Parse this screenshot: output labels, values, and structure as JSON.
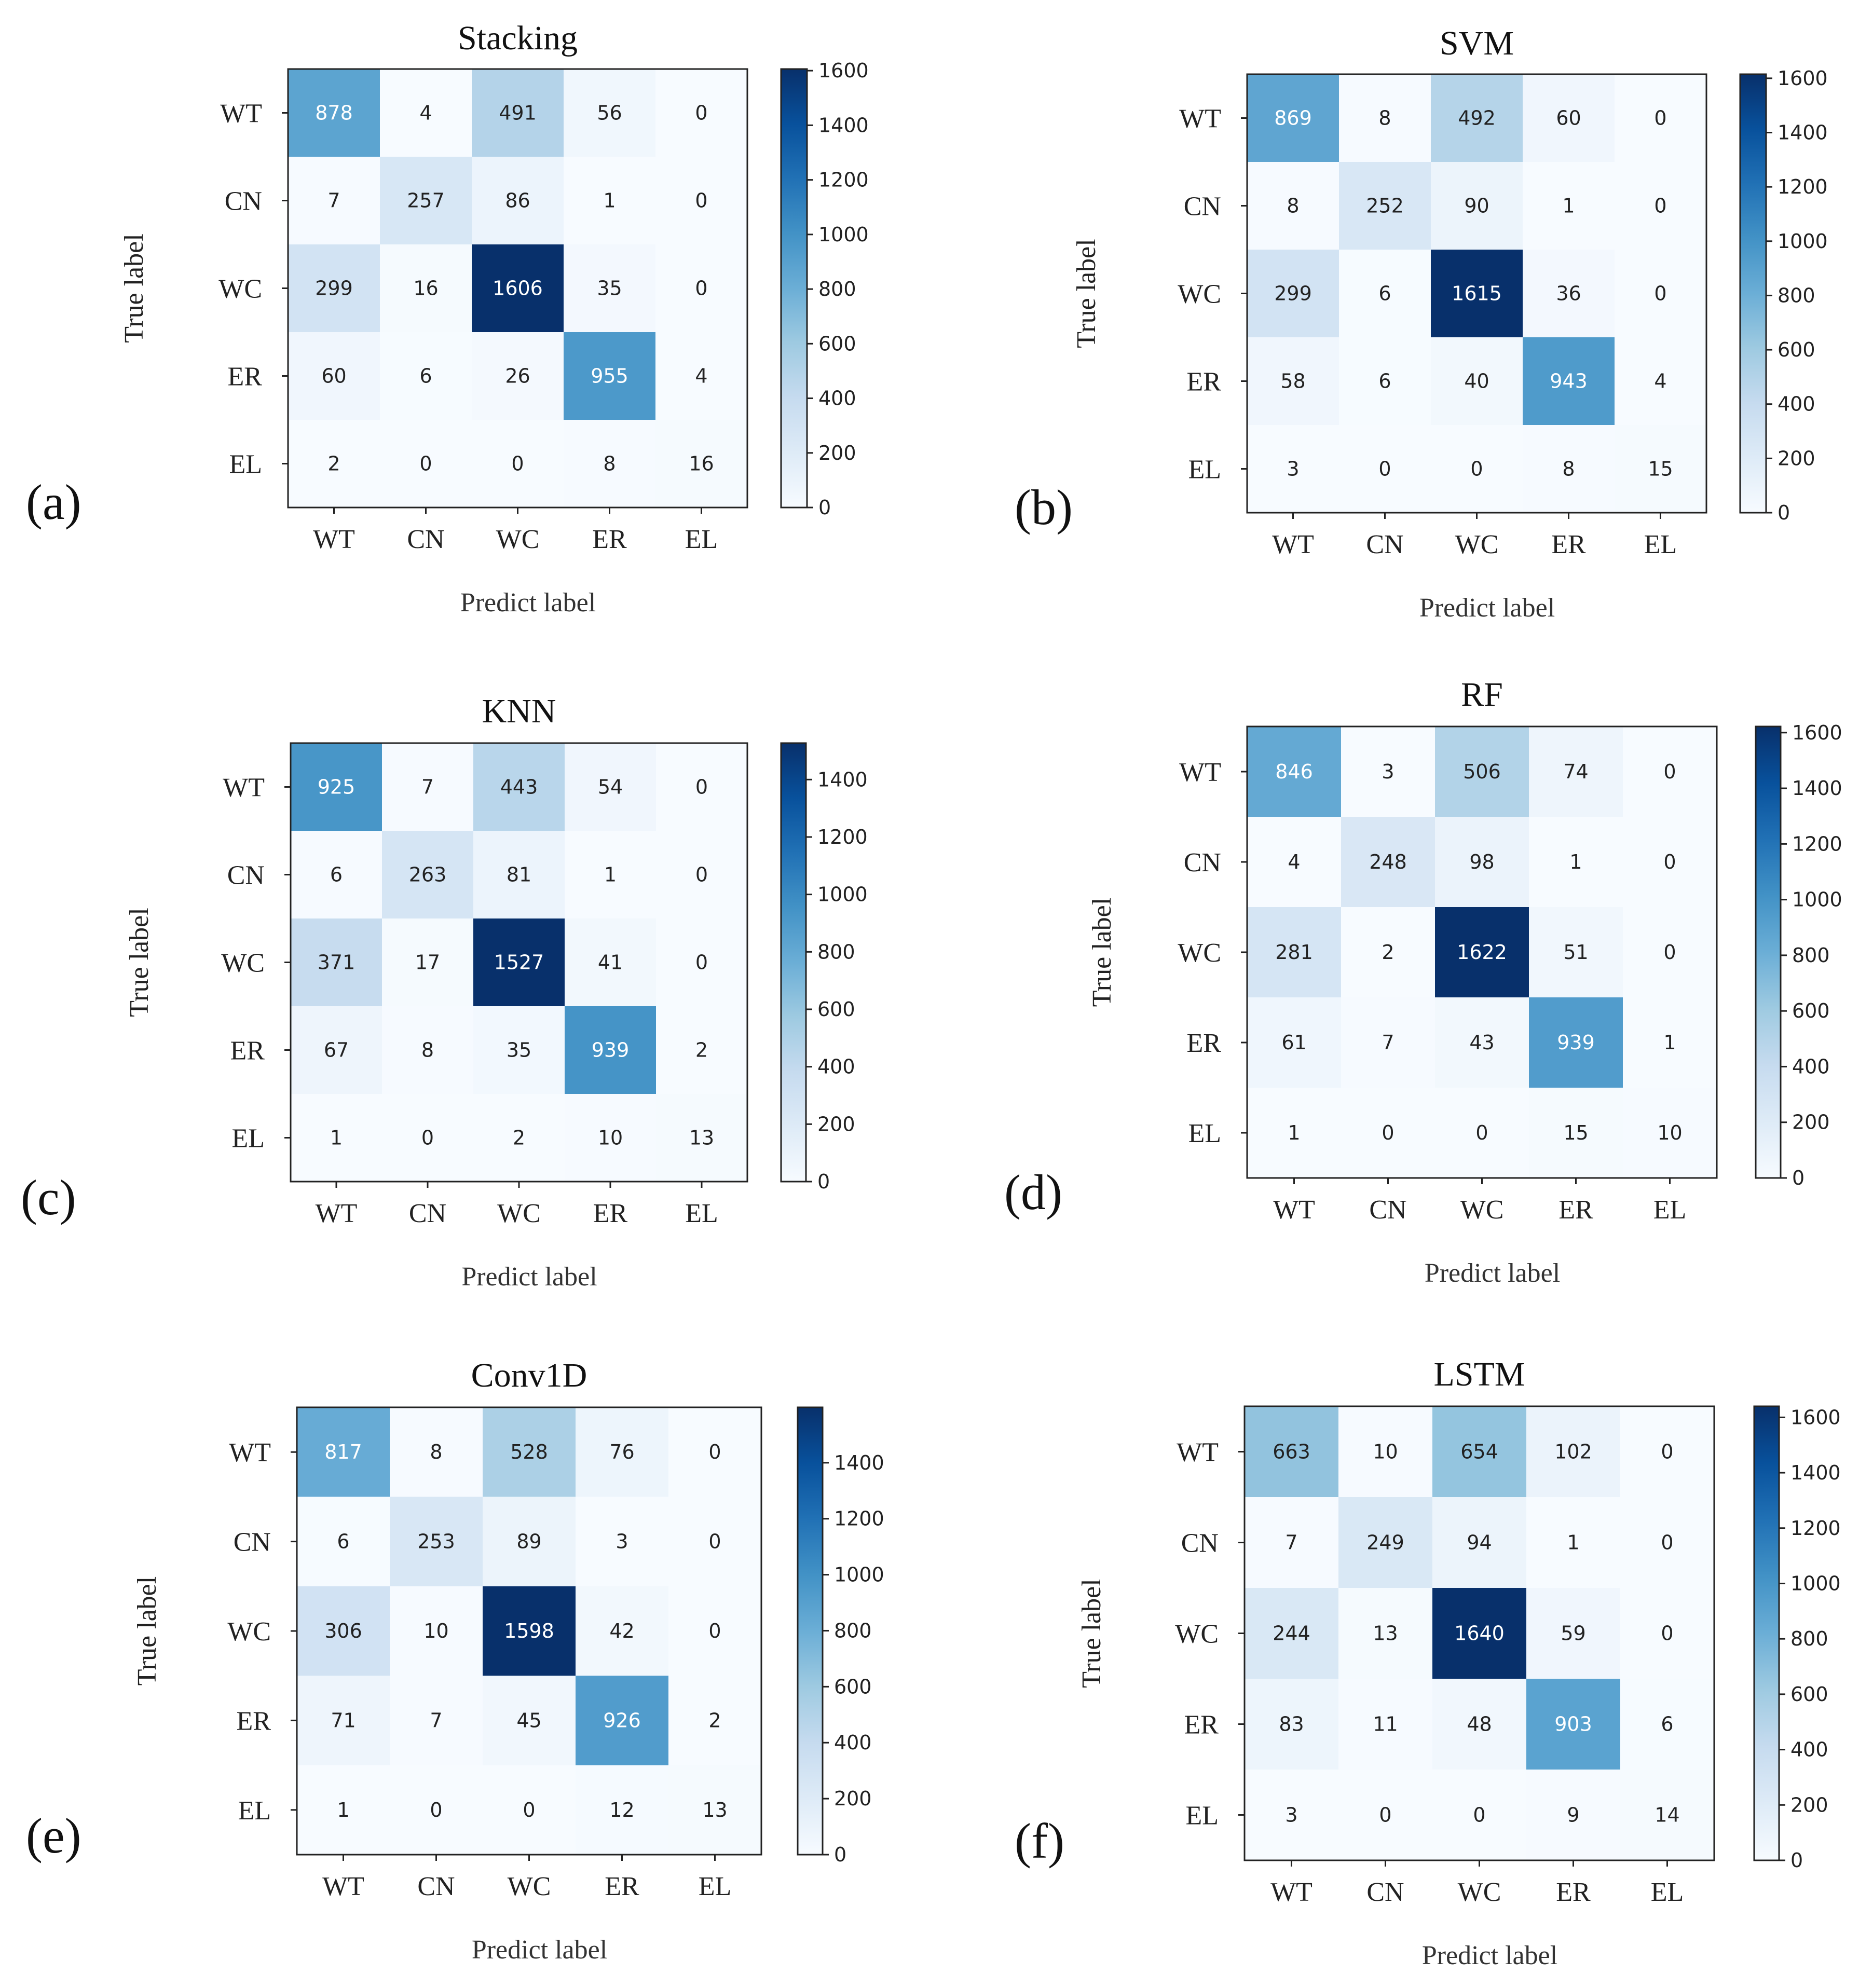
{
  "chart_data": [
    {
      "type": "heatmap",
      "panel_label": "(a)",
      "title": "Stacking",
      "xlabel": "Predict  label",
      "ylabel": "True label",
      "categories": [
        "WT",
        "CN",
        "WC",
        "ER",
        "EL"
      ],
      "matrix": [
        [
          878,
          4,
          491,
          56,
          0
        ],
        [
          7,
          257,
          86,
          1,
          0
        ],
        [
          299,
          16,
          1606,
          35,
          0
        ],
        [
          60,
          6,
          26,
          955,
          4
        ],
        [
          2,
          0,
          0,
          8,
          16
        ]
      ],
      "colorbar": {
        "max": 1606,
        "ticks": [
          0,
          200,
          400,
          600,
          800,
          1000,
          1200,
          1400,
          1600
        ]
      }
    },
    {
      "type": "heatmap",
      "panel_label": "(b)",
      "title": "SVM",
      "xlabel": "Predict  label",
      "ylabel": "True label",
      "categories": [
        "WT",
        "CN",
        "WC",
        "ER",
        "EL"
      ],
      "matrix": [
        [
          869,
          8,
          492,
          60,
          0
        ],
        [
          8,
          252,
          90,
          1,
          0
        ],
        [
          299,
          6,
          1615,
          36,
          0
        ],
        [
          58,
          6,
          40,
          943,
          4
        ],
        [
          3,
          0,
          0,
          8,
          15
        ]
      ],
      "colorbar": {
        "max": 1615,
        "ticks": [
          0,
          200,
          400,
          600,
          800,
          1000,
          1200,
          1400,
          1600
        ]
      }
    },
    {
      "type": "heatmap",
      "panel_label": "(c)",
      "title": "KNN",
      "xlabel": "Predict  label",
      "ylabel": "True label",
      "categories": [
        "WT",
        "CN",
        "WC",
        "ER",
        "EL"
      ],
      "matrix": [
        [
          925,
          7,
          443,
          54,
          0
        ],
        [
          6,
          263,
          81,
          1,
          0
        ],
        [
          371,
          17,
          1527,
          41,
          0
        ],
        [
          67,
          8,
          35,
          939,
          2
        ],
        [
          1,
          0,
          2,
          10,
          13
        ]
      ],
      "colorbar": {
        "max": 1527,
        "ticks": [
          0,
          200,
          400,
          600,
          800,
          1000,
          1200,
          1400
        ]
      }
    },
    {
      "type": "heatmap",
      "panel_label": "(d)",
      "title": "RF",
      "xlabel": "Predict  label",
      "ylabel": "True label",
      "categories": [
        "WT",
        "CN",
        "WC",
        "ER",
        "EL"
      ],
      "matrix": [
        [
          846,
          3,
          506,
          74,
          0
        ],
        [
          4,
          248,
          98,
          1,
          0
        ],
        [
          281,
          2,
          1622,
          51,
          0
        ],
        [
          61,
          7,
          43,
          939,
          1
        ],
        [
          1,
          0,
          0,
          15,
          10
        ]
      ],
      "colorbar": {
        "max": 1622,
        "ticks": [
          0,
          200,
          400,
          600,
          800,
          1000,
          1200,
          1400,
          1600
        ]
      }
    },
    {
      "type": "heatmap",
      "panel_label": "(e)",
      "title": "Conv1D",
      "xlabel": "Predict  label",
      "ylabel": "True label",
      "categories": [
        "WT",
        "CN",
        "WC",
        "ER",
        "EL"
      ],
      "matrix": [
        [
          817,
          8,
          528,
          76,
          0
        ],
        [
          6,
          253,
          89,
          3,
          0
        ],
        [
          306,
          10,
          1598,
          42,
          0
        ],
        [
          71,
          7,
          45,
          926,
          2
        ],
        [
          1,
          0,
          0,
          12,
          13
        ]
      ],
      "colorbar": {
        "max": 1598,
        "ticks": [
          0,
          200,
          400,
          600,
          800,
          1000,
          1200,
          1400
        ]
      }
    },
    {
      "type": "heatmap",
      "panel_label": "(f)",
      "title": "LSTM",
      "xlabel": "Predict  label",
      "ylabel": "True label",
      "categories": [
        "WT",
        "CN",
        "WC",
        "ER",
        "EL"
      ],
      "matrix": [
        [
          663,
          10,
          654,
          102,
          0
        ],
        [
          7,
          249,
          94,
          1,
          0
        ],
        [
          244,
          13,
          1640,
          59,
          0
        ],
        [
          83,
          11,
          48,
          903,
          6
        ],
        [
          3,
          0,
          0,
          9,
          14
        ]
      ],
      "colorbar": {
        "max": 1640,
        "ticks": [
          0,
          200,
          400,
          600,
          800,
          1000,
          1200,
          1400,
          1600
        ]
      }
    }
  ]
}
